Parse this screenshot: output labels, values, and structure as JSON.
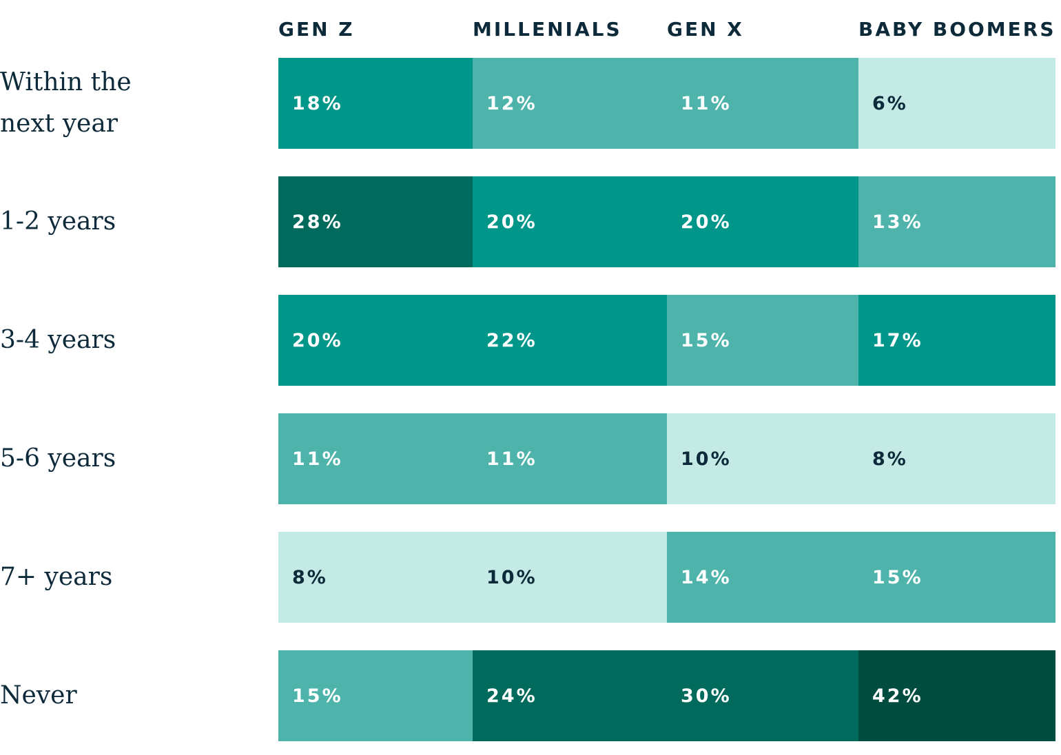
{
  "chart_data": {
    "type": "heatmap",
    "columns": [
      "GEN Z",
      "MILLENIALS",
      "GEN X",
      "BABY BOOMERS"
    ],
    "rows": [
      "Within the next year",
      "1-2 years",
      "3-4 years",
      "5-6 years",
      "7+ years",
      "Never"
    ],
    "values": [
      [
        18,
        12,
        11,
        6
      ],
      [
        28,
        20,
        20,
        13
      ],
      [
        20,
        22,
        15,
        17
      ],
      [
        11,
        11,
        10,
        8
      ],
      [
        8,
        10,
        14,
        15
      ],
      [
        15,
        24,
        30,
        42
      ]
    ],
    "value_labels": [
      [
        "18%",
        "12%",
        "11%",
        "6%"
      ],
      [
        "28%",
        "20%",
        "20%",
        "13%"
      ],
      [
        "20%",
        "22%",
        "15%",
        "17%"
      ],
      [
        "11%",
        "11%",
        "10%",
        "8%"
      ],
      [
        "8%",
        "10%",
        "14%",
        "15%"
      ],
      [
        "15%",
        "24%",
        "30%",
        "42%"
      ]
    ],
    "colors": [
      [
        "#00978a",
        "#4db3ab",
        "#4db3ab",
        "#c3eae5"
      ],
      [
        "#006b5c",
        "#00978a",
        "#00978a",
        "#4db3ab"
      ],
      [
        "#00978a",
        "#00978a",
        "#4db3ab",
        "#00978a"
      ],
      [
        "#4db3ab",
        "#4db3ab",
        "#c3eae5",
        "#c3eae5"
      ],
      [
        "#c3eae5",
        "#c3eae5",
        "#4db3ab",
        "#4db3ab"
      ],
      [
        "#4db3ab",
        "#006b5c",
        "#006b5c",
        "#004d40"
      ]
    ]
  }
}
